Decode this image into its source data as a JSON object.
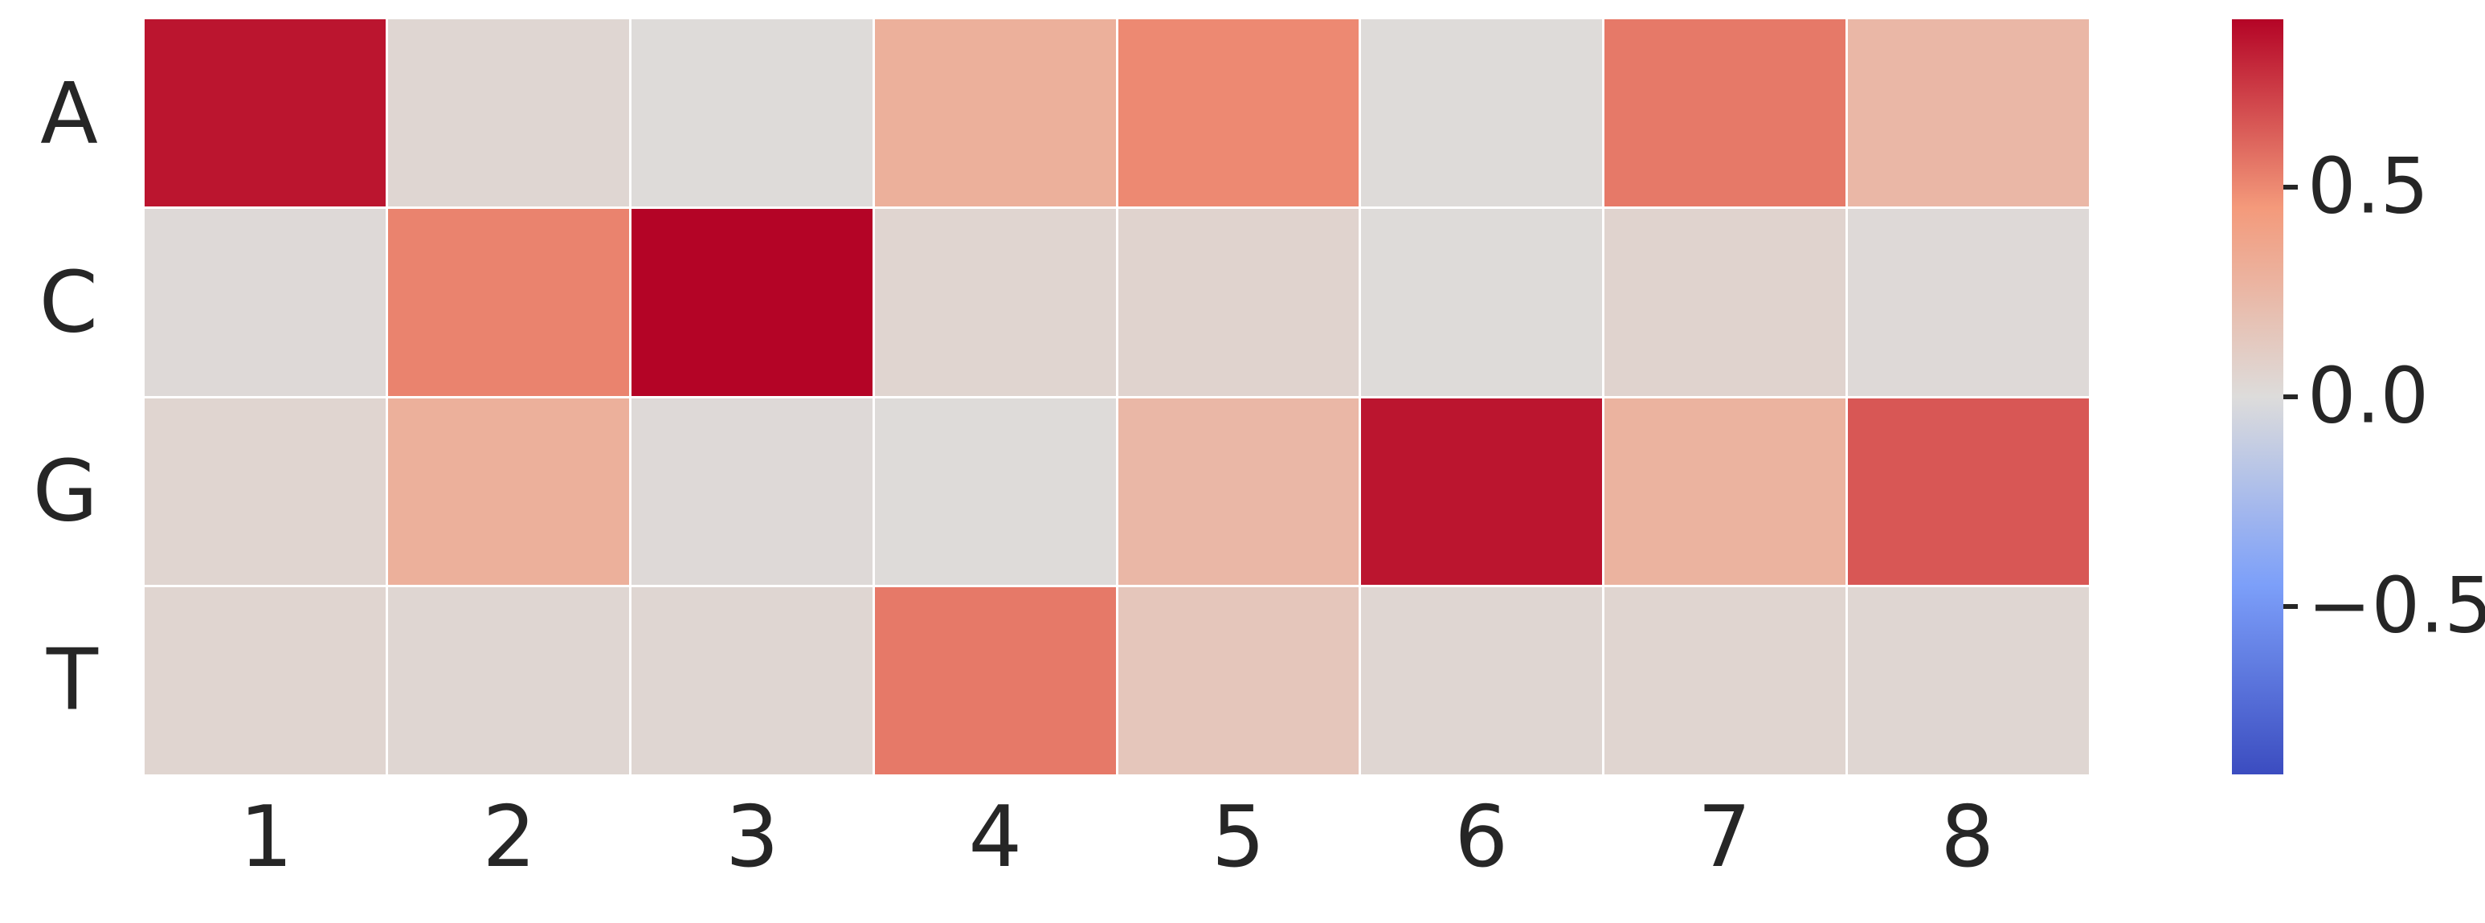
{
  "figure": {
    "background": "#ffffff",
    "text_color": "#262626"
  },
  "chart_data": {
    "type": "heatmap",
    "title": "",
    "xlabel": "",
    "ylabel": "",
    "rows": [
      "A",
      "C",
      "G",
      "T"
    ],
    "columns": [
      "1",
      "2",
      "3",
      "4",
      "5",
      "6",
      "7",
      "8"
    ],
    "values": [
      [
        0.85,
        0.04,
        0.01,
        0.3,
        0.5,
        0.01,
        0.55,
        0.25
      ],
      [
        0.02,
        0.52,
        0.9,
        0.05,
        0.06,
        0.01,
        0.06,
        0.02
      ],
      [
        0.05,
        0.3,
        0.02,
        0.01,
        0.25,
        0.85,
        0.28,
        0.65
      ],
      [
        0.05,
        0.04,
        0.04,
        0.55,
        0.15,
        0.04,
        0.05,
        0.04
      ]
    ],
    "colormap": "coolwarm",
    "vmin": -0.9,
    "vmax": 0.9,
    "grid": false,
    "colorbar": {
      "position": "right",
      "ticks": [
        0.5,
        0.0,
        -0.5
      ],
      "tick_labels": [
        "0.5",
        "0.0",
        "−0.5"
      ]
    },
    "colormap_anchors": {
      "t": [
        0.0,
        0.25,
        0.5,
        0.75,
        1.0
      ],
      "colors": [
        "#3b4cc0",
        "#7c9ff9",
        "#dddcdb",
        "#f49a7b",
        "#b40426"
      ]
    }
  }
}
